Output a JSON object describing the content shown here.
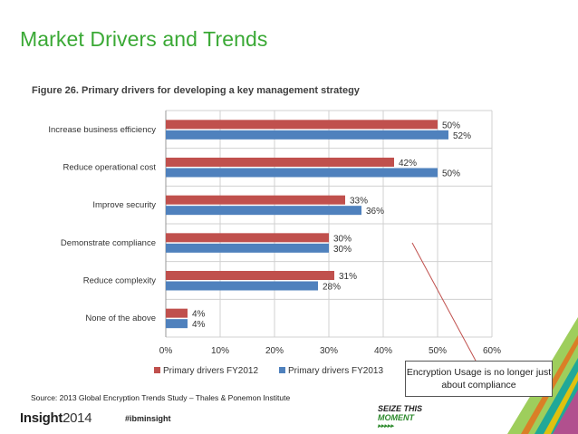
{
  "slide": {
    "title": "Market Drivers and Trends",
    "source": "Source: 2013 Global Encryption Trends Study – Thales & Ponemon Institute",
    "callout": "Encryption Usage is no longer just about compliance",
    "footer_logo_main": "Insight",
    "footer_logo_year": "2014",
    "hashtag": "#ibminsight",
    "slogan_line1": "SEIZE THIS",
    "slogan_line2": "MOMENT",
    "slogan_arrows": "▸▸▸▸▸"
  },
  "chart_data": {
    "type": "bar",
    "orientation": "horizontal",
    "title": "Figure 26. Primary drivers for developing a key management strategy",
    "categories": [
      "Increase business efficiency",
      "Reduce operational cost",
      "Improve security",
      "Demonstrate compliance",
      "Reduce complexity",
      "None of the above"
    ],
    "series": [
      {
        "name": "Primary drivers FY2012",
        "color": "#c0504d",
        "values": [
          50,
          42,
          33,
          30,
          31,
          4
        ],
        "labels": [
          "50%",
          "42%",
          "33%",
          "30%",
          "31%",
          "4%"
        ]
      },
      {
        "name": "Primary drivers FY2013",
        "color": "#4f81bd",
        "values": [
          52,
          50,
          36,
          30,
          28,
          4
        ],
        "labels": [
          "52%",
          "50%",
          "36%",
          "30%",
          "28%",
          "4%"
        ]
      }
    ],
    "xlim": [
      0,
      60
    ],
    "ticks": [
      0,
      10,
      20,
      30,
      40,
      50,
      60
    ],
    "tick_labels": [
      "0%",
      "10%",
      "20%",
      "30%",
      "40%",
      "50%",
      "60%"
    ],
    "legend": "bottom",
    "grid": true
  }
}
